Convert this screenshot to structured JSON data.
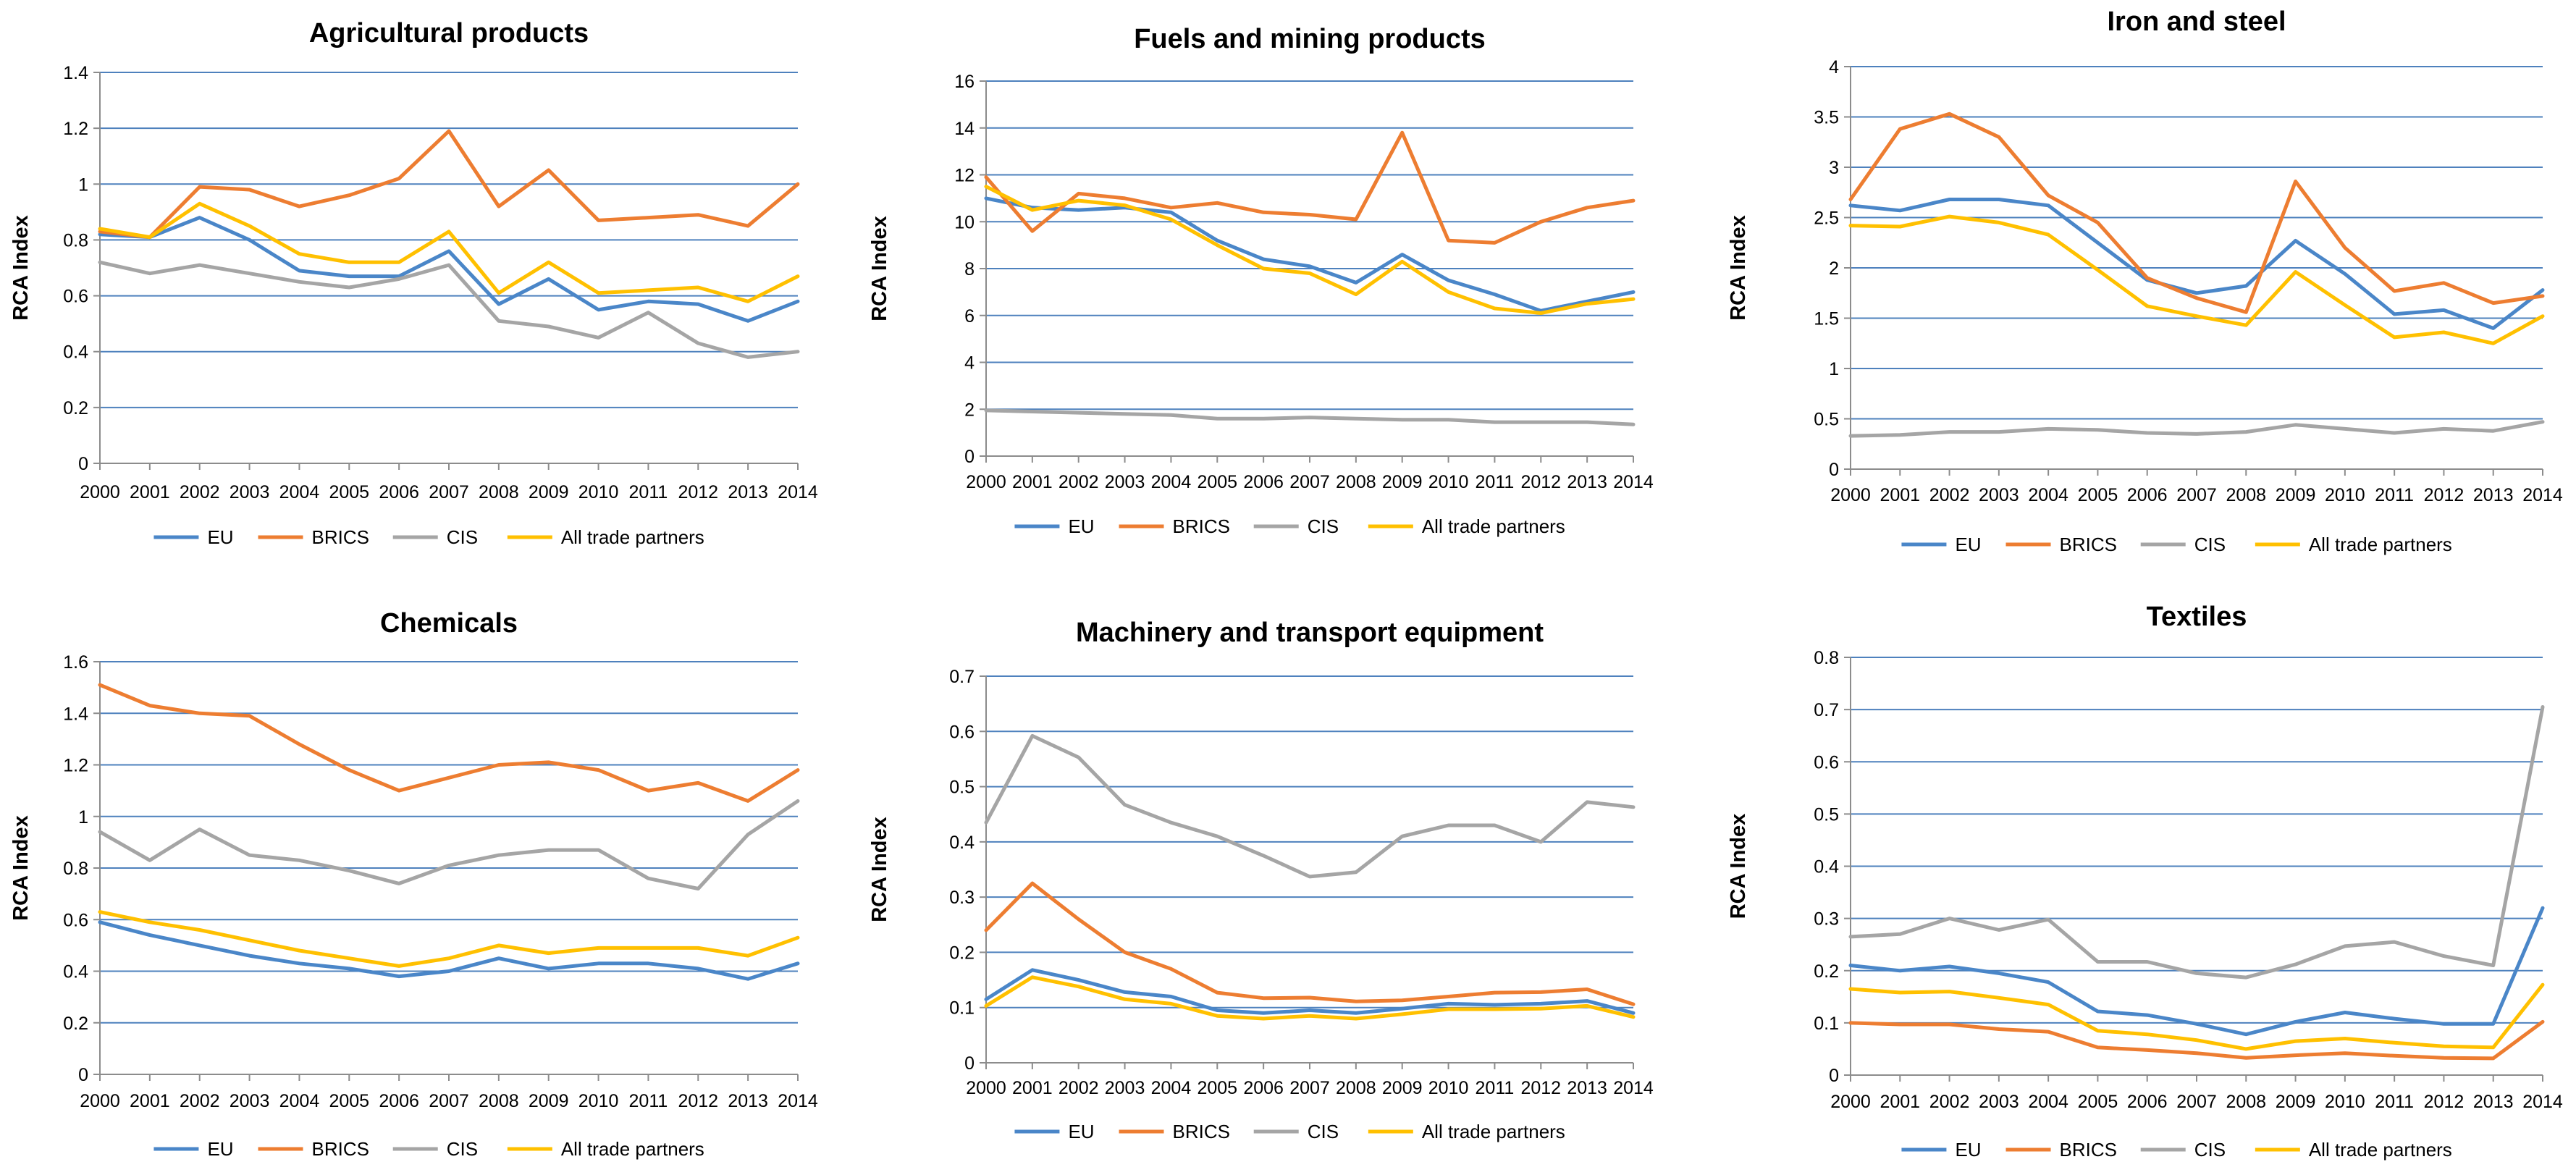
{
  "colors": {
    "EU": "#4A86C8",
    "BRICS": "#ED7D31",
    "CIS": "#A5A5A5",
    "All trade partners": "#FFC000",
    "grid": "#4E81BD",
    "axis": "#8C8C8C"
  },
  "chart_data": [
    {
      "type": "line",
      "title": "Agricultural products",
      "xlabel": "",
      "ylabel": "RCA Index",
      "categories": [
        "2000",
        "2001",
        "2002",
        "2003",
        "2004",
        "2005",
        "2006",
        "2007",
        "2008",
        "2009",
        "2010",
        "2011",
        "2012",
        "2013",
        "2014"
      ],
      "ylim": [
        0,
        1.4
      ],
      "yticks": [
        0,
        0.2,
        0.4,
        0.6,
        0.8,
        1,
        1.2,
        1.4
      ],
      "ytick_labels": [
        "0",
        "0.2",
        "0.4",
        "0.6",
        "0.8",
        "1",
        "1.2",
        "1.4"
      ],
      "grid": true,
      "legend": "bottom",
      "series": [
        {
          "name": "EU",
          "values": [
            0.82,
            0.81,
            0.88,
            0.8,
            0.69,
            0.67,
            0.67,
            0.76,
            0.57,
            0.66,
            0.55,
            0.58,
            0.57,
            0.51,
            0.58
          ]
        },
        {
          "name": "BRICS",
          "values": [
            0.83,
            0.81,
            0.99,
            0.98,
            0.92,
            0.96,
            1.02,
            1.19,
            0.92,
            1.05,
            0.87,
            0.88,
            0.89,
            0.85,
            1.0
          ]
        },
        {
          "name": "CIS",
          "values": [
            0.72,
            0.68,
            0.71,
            0.68,
            0.65,
            0.63,
            0.66,
            0.71,
            0.51,
            0.49,
            0.45,
            0.54,
            0.43,
            0.38,
            0.4
          ]
        },
        {
          "name": "All trade partners",
          "values": [
            0.84,
            0.81,
            0.93,
            0.85,
            0.75,
            0.72,
            0.72,
            0.83,
            0.61,
            0.72,
            0.61,
            0.62,
            0.63,
            0.58,
            0.67
          ]
        }
      ]
    },
    {
      "type": "line",
      "title": "Fuels and mining products",
      "xlabel": "",
      "ylabel": "RCA Index",
      "categories": [
        "2000",
        "2001",
        "2002",
        "2003",
        "2004",
        "2005",
        "2006",
        "2007",
        "2008",
        "2009",
        "2010",
        "2011",
        "2012",
        "2013",
        "2014"
      ],
      "ylim": [
        0,
        16
      ],
      "yticks": [
        0,
        2,
        4,
        6,
        8,
        10,
        12,
        14,
        16
      ],
      "ytick_labels": [
        "0",
        "2",
        "4",
        "6",
        "8",
        "10",
        "12",
        "14",
        "16"
      ],
      "grid": true,
      "legend": "bottom",
      "series": [
        {
          "name": "EU",
          "values": [
            11.0,
            10.6,
            10.5,
            10.6,
            10.4,
            9.2,
            8.4,
            8.1,
            7.4,
            8.6,
            7.5,
            6.9,
            6.2,
            6.6,
            7.0
          ]
        },
        {
          "name": "BRICS",
          "values": [
            11.9,
            9.6,
            11.2,
            11.0,
            10.6,
            10.8,
            10.4,
            10.3,
            10.1,
            13.8,
            9.2,
            9.1,
            10.0,
            10.6,
            10.9
          ]
        },
        {
          "name": "CIS",
          "values": [
            1.95,
            1.9,
            1.85,
            1.8,
            1.75,
            1.6,
            1.6,
            1.65,
            1.6,
            1.55,
            1.55,
            1.45,
            1.45,
            1.45,
            1.35
          ]
        },
        {
          "name": "All trade partners",
          "values": [
            11.5,
            10.5,
            10.9,
            10.7,
            10.1,
            9.0,
            8.0,
            7.8,
            6.9,
            8.3,
            7.0,
            6.3,
            6.1,
            6.5,
            6.7
          ]
        }
      ]
    },
    {
      "type": "line",
      "title": "Iron and steel",
      "xlabel": "",
      "ylabel": "RCA Index",
      "categories": [
        "2000",
        "2001",
        "2002",
        "2003",
        "2004",
        "2005",
        "2006",
        "2007",
        "2008",
        "2009",
        "2010",
        "2011",
        "2012",
        "2013",
        "2014"
      ],
      "ylim": [
        0,
        4
      ],
      "yticks": [
        0,
        0.5,
        1,
        1.5,
        2,
        2.5,
        3,
        3.5,
        4
      ],
      "ytick_labels": [
        "0",
        "0.5",
        "1",
        "1.5",
        "2",
        "2.5",
        "3",
        "3.5",
        "4"
      ],
      "grid": true,
      "legend": "bottom",
      "series": [
        {
          "name": "EU",
          "values": [
            2.62,
            2.57,
            2.68,
            2.68,
            2.62,
            2.25,
            1.88,
            1.75,
            1.82,
            2.27,
            1.94,
            1.54,
            1.58,
            1.4,
            1.78
          ]
        },
        {
          "name": "BRICS",
          "values": [
            2.68,
            3.38,
            3.53,
            3.3,
            2.72,
            2.45,
            1.9,
            1.7,
            1.56,
            2.86,
            2.2,
            1.77,
            1.85,
            1.65,
            1.72
          ]
        },
        {
          "name": "CIS",
          "values": [
            0.33,
            0.34,
            0.37,
            0.37,
            0.4,
            0.39,
            0.36,
            0.35,
            0.37,
            0.44,
            0.4,
            0.36,
            0.4,
            0.38,
            0.47
          ]
        },
        {
          "name": "All trade partners",
          "values": [
            2.42,
            2.41,
            2.51,
            2.45,
            2.33,
            1.98,
            1.62,
            1.52,
            1.43,
            1.96,
            1.63,
            1.31,
            1.36,
            1.25,
            1.52
          ]
        }
      ]
    },
    {
      "type": "line",
      "title": "Chemicals",
      "xlabel": "",
      "ylabel": "RCA Index",
      "categories": [
        "2000",
        "2001",
        "2002",
        "2003",
        "2004",
        "2005",
        "2006",
        "2007",
        "2008",
        "2009",
        "2010",
        "2011",
        "2012",
        "2013",
        "2014"
      ],
      "ylim": [
        0,
        1.6
      ],
      "yticks": [
        0,
        0.2,
        0.4,
        0.6,
        0.8,
        1,
        1.2,
        1.4,
        1.6
      ],
      "ytick_labels": [
        "0",
        "0.2",
        "0.4",
        "0.6",
        "0.8",
        "1",
        "1.2",
        "1.4",
        "1.6"
      ],
      "grid": true,
      "legend": "bottom",
      "series": [
        {
          "name": "EU",
          "values": [
            0.59,
            0.54,
            0.5,
            0.46,
            0.43,
            0.41,
            0.38,
            0.4,
            0.45,
            0.41,
            0.43,
            0.43,
            0.41,
            0.37,
            0.43
          ]
        },
        {
          "name": "BRICS",
          "values": [
            1.51,
            1.43,
            1.4,
            1.39,
            1.28,
            1.18,
            1.1,
            1.15,
            1.2,
            1.21,
            1.18,
            1.1,
            1.13,
            1.06,
            1.18
          ]
        },
        {
          "name": "CIS",
          "values": [
            0.94,
            0.83,
            0.95,
            0.85,
            0.83,
            0.79,
            0.74,
            0.81,
            0.85,
            0.87,
            0.87,
            0.76,
            0.72,
            0.93,
            1.06
          ]
        },
        {
          "name": "All trade partners",
          "values": [
            0.63,
            0.59,
            0.56,
            0.52,
            0.48,
            0.45,
            0.42,
            0.45,
            0.5,
            0.47,
            0.49,
            0.49,
            0.49,
            0.46,
            0.53
          ]
        }
      ]
    },
    {
      "type": "line",
      "title": "Machinery and transport equipment",
      "xlabel": "",
      "ylabel": "RCA Index",
      "categories": [
        "2000",
        "2001",
        "2002",
        "2003",
        "2004",
        "2005",
        "2006",
        "2007",
        "2008",
        "2009",
        "2010",
        "2011",
        "2012",
        "2013",
        "2014"
      ],
      "ylim": [
        0,
        0.7
      ],
      "yticks": [
        0,
        0.1,
        0.2,
        0.3,
        0.4,
        0.5,
        0.6,
        0.7
      ],
      "ytick_labels": [
        "0",
        "0.1",
        "0.2",
        "0.3",
        "0.4",
        "0.5",
        "0.6",
        "0.7"
      ],
      "grid": true,
      "legend": "bottom",
      "series": [
        {
          "name": "EU",
          "values": [
            0.115,
            0.168,
            0.15,
            0.128,
            0.12,
            0.095,
            0.09,
            0.095,
            0.09,
            0.098,
            0.107,
            0.105,
            0.107,
            0.112,
            0.09
          ]
        },
        {
          "name": "BRICS",
          "values": [
            0.24,
            0.325,
            0.26,
            0.2,
            0.17,
            0.127,
            0.117,
            0.118,
            0.111,
            0.113,
            0.12,
            0.127,
            0.128,
            0.133,
            0.106
          ]
        },
        {
          "name": "CIS",
          "values": [
            0.435,
            0.592,
            0.553,
            0.467,
            0.435,
            0.41,
            0.375,
            0.337,
            0.345,
            0.41,
            0.43,
            0.43,
            0.4,
            0.472,
            0.463
          ]
        },
        {
          "name": "All trade partners",
          "values": [
            0.103,
            0.155,
            0.138,
            0.115,
            0.107,
            0.085,
            0.08,
            0.085,
            0.08,
            0.088,
            0.097,
            0.097,
            0.098,
            0.103,
            0.083
          ]
        }
      ]
    },
    {
      "type": "line",
      "title": "Textiles",
      "xlabel": "",
      "ylabel": "RCA Index",
      "categories": [
        "2000",
        "2001",
        "2002",
        "2003",
        "2004",
        "2005",
        "2006",
        "2007",
        "2008",
        "2009",
        "2010",
        "2011",
        "2012",
        "2013",
        "2014"
      ],
      "ylim": [
        0,
        0.8
      ],
      "yticks": [
        0,
        0.1,
        0.2,
        0.3,
        0.4,
        0.5,
        0.6,
        0.7,
        0.8
      ],
      "ytick_labels": [
        "0",
        "0.1",
        "0.2",
        "0.3",
        "0.4",
        "0.5",
        "0.6",
        "0.7",
        "0.8"
      ],
      "grid": true,
      "legend": "bottom",
      "series": [
        {
          "name": "EU",
          "values": [
            0.21,
            0.2,
            0.208,
            0.195,
            0.178,
            0.122,
            0.115,
            0.098,
            0.078,
            0.102,
            0.12,
            0.108,
            0.098,
            0.098,
            0.32
          ]
        },
        {
          "name": "BRICS",
          "values": [
            0.1,
            0.097,
            0.097,
            0.088,
            0.083,
            0.053,
            0.048,
            0.042,
            0.033,
            0.038,
            0.042,
            0.037,
            0.033,
            0.032,
            0.102
          ]
        },
        {
          "name": "CIS",
          "values": [
            0.265,
            0.27,
            0.3,
            0.278,
            0.298,
            0.217,
            0.217,
            0.195,
            0.187,
            0.212,
            0.247,
            0.255,
            0.228,
            0.21,
            0.705
          ]
        },
        {
          "name": "All trade partners",
          "values": [
            0.165,
            0.158,
            0.16,
            0.148,
            0.135,
            0.085,
            0.078,
            0.067,
            0.05,
            0.065,
            0.07,
            0.062,
            0.055,
            0.053,
            0.173
          ]
        }
      ]
    }
  ]
}
